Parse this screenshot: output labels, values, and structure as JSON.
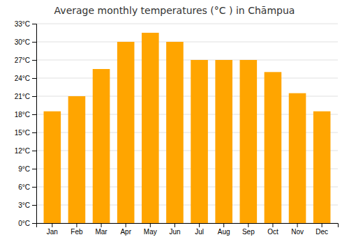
{
  "chart_data": {
    "type": "bar",
    "title": "Average monthly temperatures (°C ) in Chāmpua",
    "categories": [
      "Jan",
      "Feb",
      "Mar",
      "Apr",
      "May",
      "Jun",
      "Jul",
      "Aug",
      "Sep",
      "Oct",
      "Nov",
      "Dec"
    ],
    "values": [
      18.5,
      21.0,
      25.5,
      30.0,
      31.5,
      30.0,
      27.0,
      27.0,
      27.0,
      25.0,
      21.5,
      18.5
    ],
    "color": "#FFA500",
    "ylim": [
      0,
      33
    ],
    "yticks": [
      {
        "value": 0,
        "label": "0°C"
      },
      {
        "value": 3,
        "label": "3°C"
      },
      {
        "value": 6,
        "label": "6°C"
      },
      {
        "value": 9,
        "label": "9°C"
      },
      {
        "value": 12,
        "label": "12°C"
      },
      {
        "value": 15,
        "label": "15°C"
      },
      {
        "value": 18,
        "label": "18°C"
      },
      {
        "value": 21,
        "label": "21°C"
      },
      {
        "value": 24,
        "label": "24°C"
      },
      {
        "value": 27,
        "label": "27°C"
      },
      {
        "value": 30,
        "label": "30°C"
      },
      {
        "value": 33,
        "label": "33°C"
      }
    ],
    "grid": true
  }
}
